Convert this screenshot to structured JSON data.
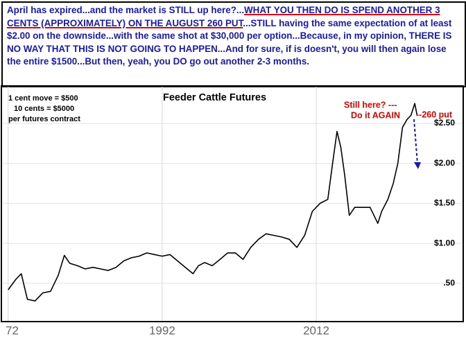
{
  "header": {
    "segments": [
      "April has expired...and the market is STILL up here?...",
      "WHAT YOU THEN DO IS SPEND ANOTHER 3 CENTS (APPROXIMATELY) ON THE AUGUST 260 PUT",
      "...STILL having the same expectation of at least $2.00 on the downside...with the same shot at $30,000 per option...Because, in my opinion, THERE IS NO WAY THAT THIS IS NOT GOING TO HAPPEN...And for sure, if is doesn't, you will then again lose the entire $1500...But then, yeah, you DO go out another 2-3 months."
    ]
  },
  "chart_data": {
    "type": "line",
    "title": "Feeder Cattle Futures",
    "x": [
      1972,
      1973,
      1973.7,
      1974.5,
      1975.5,
      1976.5,
      1977.5,
      1978.5,
      1979.3,
      1980,
      1981,
      1982,
      1983,
      1984,
      1985,
      1986,
      1987,
      1988,
      1989,
      1990,
      1991,
      1992,
      1993,
      1994,
      1995,
      1996,
      1996.7,
      1997.5,
      1998.5,
      1999.5,
      2000.5,
      2001.5,
      2002.5,
      2003.5,
      2004.5,
      2005.5,
      2006.5,
      2007.5,
      2008.5,
      2009.5,
      2010.5,
      2011.5,
      2012.5,
      2013.5,
      2014.2,
      2014.7,
      2015.2,
      2015.7,
      2016.3,
      2017,
      2018,
      2019,
      2020,
      2020.5,
      2021.3,
      2022,
      2022.6,
      2023.2,
      2023.8,
      2024.3,
      2024.8,
      2025.1
    ],
    "values": [
      0.42,
      0.55,
      0.62,
      0.3,
      0.28,
      0.38,
      0.4,
      0.6,
      0.85,
      0.75,
      0.72,
      0.68,
      0.7,
      0.68,
      0.66,
      0.7,
      0.78,
      0.82,
      0.84,
      0.88,
      0.86,
      0.84,
      0.86,
      0.78,
      0.7,
      0.62,
      0.72,
      0.76,
      0.72,
      0.8,
      0.88,
      0.88,
      0.8,
      0.95,
      1.05,
      1.12,
      1.1,
      1.08,
      1.05,
      0.95,
      1.1,
      1.4,
      1.5,
      1.55,
      2.05,
      2.4,
      2.2,
      1.85,
      1.35,
      1.45,
      1.45,
      1.45,
      1.25,
      1.4,
      1.55,
      1.75,
      2.0,
      2.45,
      2.55,
      2.6,
      2.75,
      2.6
    ],
    "color": "#000000",
    "xlim": [
      1971.3,
      2031
    ],
    "xticks": [
      {
        "value": 1972,
        "label": "72"
      },
      1992,
      2012
    ],
    "ylim": [
      0.03,
      2.96
    ],
    "yticks": [
      {
        "value": 0.5,
        "label": ".50"
      },
      {
        "value": 1,
        "label": "$1.00"
      },
      {
        "value": 1.5,
        "label": "$1.50"
      },
      {
        "value": 2,
        "label": "$2.00"
      },
      {
        "value": 2.5,
        "label": "$2.50"
      }
    ],
    "grid": true,
    "annotations": [
      "1 cent move = $500",
      "10 cents = $5000",
      "per futures contract",
      "Still here? ---",
      "Do it AGAIN",
      "--260 put"
    ]
  }
}
